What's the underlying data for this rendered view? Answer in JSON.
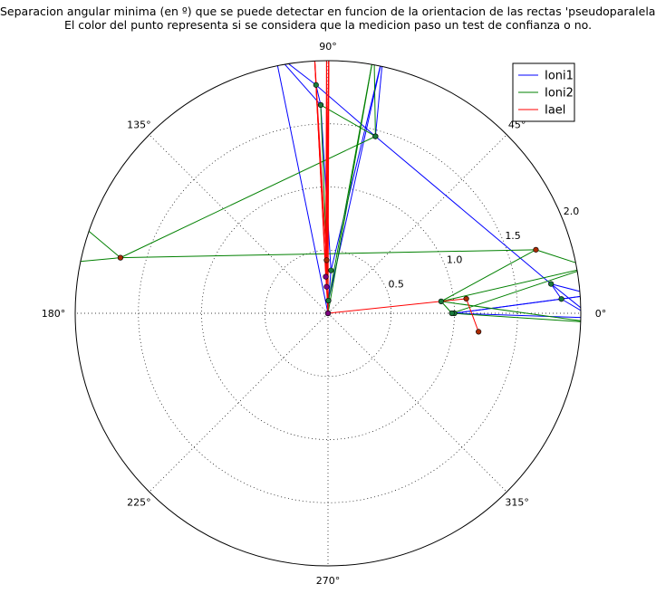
{
  "chart_data": {
    "type": "scatter",
    "projection": "polar",
    "title": "Separacion angular minima (en º) que se puede detectar en funcion de la orientacion de las rectas 'pseudoparalelas'.",
    "subtitle": "El color del punto representa si se considera que la medicion paso un test de confianza o no.",
    "angle_unit": "degrees",
    "angle_ticks": [
      "0°",
      "45°",
      "90°",
      "135°",
      "180°",
      "225°",
      "270°",
      "315°"
    ],
    "radial_ticks": [
      "0.5",
      "1.0",
      "1.5",
      "2.0"
    ],
    "radial_tick_values": [
      0.5,
      1.0,
      1.5,
      2.0
    ],
    "rlim": [
      0,
      2.0
    ],
    "grid": true,
    "legend_position": "top-right",
    "series": [
      {
        "name": "Ioni1",
        "color": "#0000ff",
        "points": [
          {
            "theta": 0,
            "r": 1.0,
            "color": "#1a7a3a"
          },
          {
            "theta": 3.5,
            "r": 1.85,
            "color": "#1a7a3a"
          },
          {
            "theta": 7.5,
            "r": 1.78,
            "color": "#1a7a3a"
          },
          {
            "theta": 75,
            "r": 1.45,
            "color": "#1a7a3a"
          },
          {
            "theta": 93,
            "r": 1.81,
            "color": "#1a7a3a"
          },
          {
            "theta": 92,
            "r": 1.65,
            "color": "#1a7a3a"
          },
          {
            "theta": 86,
            "r": 0.34,
            "color": "#1a7a3a"
          },
          {
            "theta": 88,
            "r": 0.1,
            "color": "#1a7a3a"
          },
          {
            "theta": 90,
            "r": 0.0,
            "color": "#1a7a3a"
          }
        ],
        "line_extends_to": [
          {
            "theta": 78,
            "r": 2.1
          },
          {
            "theta": 101.5,
            "r": 2.1
          },
          {
            "theta": -1,
            "r": 2.1
          },
          {
            "theta": 4,
            "r": 2.1
          }
        ]
      },
      {
        "name": "Ioni2",
        "color": "#008000",
        "points": [
          {
            "theta": 0,
            "r": 0.98,
            "color": "#1a7a3a"
          },
          {
            "theta": 6,
            "r": 0.9,
            "color": "#1a7a3a"
          },
          {
            "theta": 17,
            "r": 1.72,
            "color": "#aa2a00"
          },
          {
            "theta": 165,
            "r": 1.7,
            "color": "#aa2a00"
          },
          {
            "theta": 75,
            "r": 1.45,
            "color": "#1a7a3a"
          },
          {
            "theta": 92,
            "r": 1.65,
            "color": "#1a7a3a"
          },
          {
            "theta": 88,
            "r": 0.1,
            "color": "#1a7a3a"
          },
          {
            "theta": 90,
            "r": 0.0,
            "color": "#1a7a3a"
          }
        ],
        "line_extends_to": [
          {
            "theta": 10,
            "r": 2.1
          },
          {
            "theta": -2,
            "r": 2.1
          },
          {
            "theta": 80,
            "r": 2.1
          },
          {
            "theta": 104,
            "r": 2.1
          },
          {
            "theta": 160,
            "r": 2.1
          },
          {
            "theta": 169,
            "r": 2.1
          }
        ]
      },
      {
        "name": "Iael",
        "color": "#ff0000",
        "points": [
          {
            "theta": 91.5,
            "r": 0.42,
            "color": "#aa2a00"
          },
          {
            "theta": 93.5,
            "r": 0.29,
            "color": "#800080"
          },
          {
            "theta": 93,
            "r": 0.21,
            "color": "#800080"
          },
          {
            "theta": 90,
            "r": 0.0,
            "color": "#800080"
          },
          {
            "theta": 6,
            "r": 1.1,
            "color": "#aa2a00"
          },
          {
            "theta": -7,
            "r": 1.2,
            "color": "#aa2a00"
          }
        ],
        "line_extends_to": [
          {
            "theta": 93,
            "r": 2.1
          },
          {
            "theta": 89.8,
            "r": 2.1
          },
          {
            "theta": 90.3,
            "r": 2.1
          }
        ]
      }
    ]
  }
}
